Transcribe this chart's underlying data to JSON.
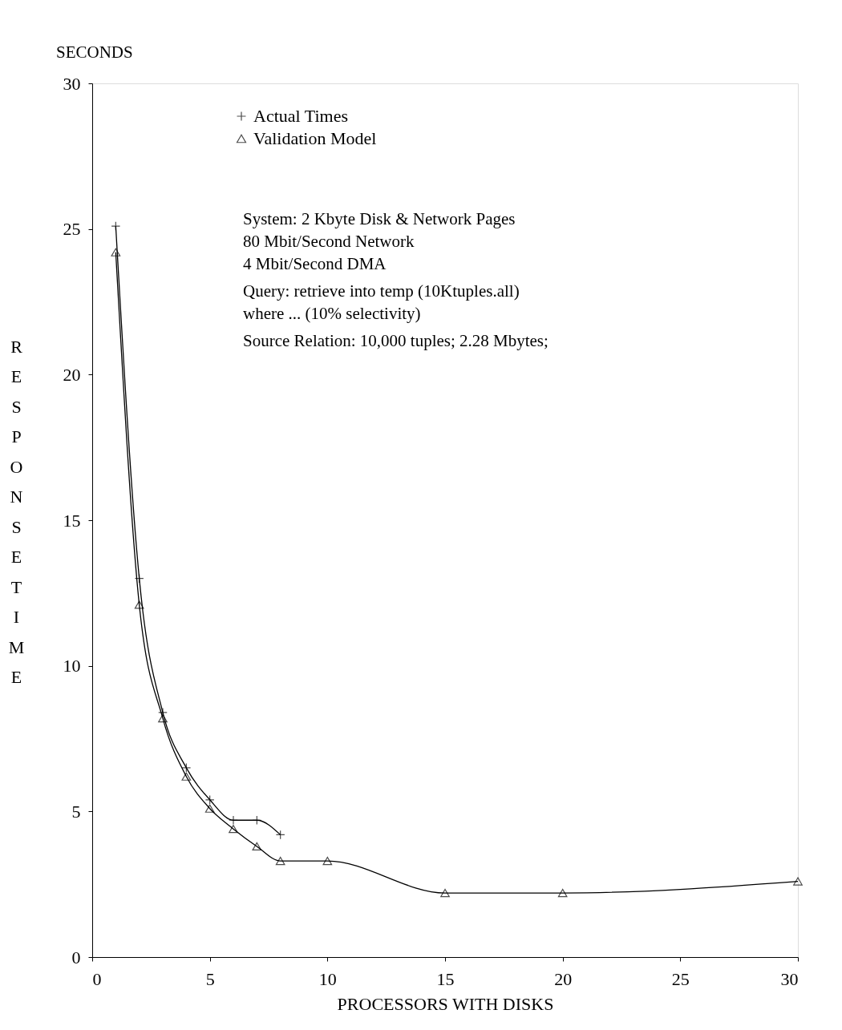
{
  "chart_data": {
    "type": "line",
    "xlabel": "PROCESSORS WITH DISKS",
    "ylabel": "RESPONSE TIME",
    "xlim": [
      0,
      30
    ],
    "xticks": [
      0,
      5,
      10,
      15,
      20,
      25,
      30
    ],
    "ylim": [
      0,
      30
    ],
    "yticks": [
      0,
      5,
      10,
      15,
      20,
      25,
      30
    ],
    "grid": false,
    "legend": "top left",
    "line_style": "solid",
    "series": [
      {
        "name": "Actual Times",
        "color": "#000000",
        "marker": "cross",
        "x": [
          1,
          2,
          3,
          4,
          5,
          6,
          7,
          8
        ],
        "values": [
          25.1,
          13.0,
          8.4,
          6.5,
          5.4,
          4.7,
          4.7,
          4.2
        ]
      },
      {
        "name": "Validation Model",
        "color": "#000000",
        "marker": "triangle",
        "x": [
          1,
          2,
          3,
          4,
          5,
          6,
          7,
          8,
          10,
          15,
          20,
          30
        ],
        "values": [
          24.2,
          12.1,
          8.2,
          6.2,
          5.1,
          4.4,
          3.8,
          3.3,
          3.3,
          2.2,
          2.2,
          2.6
        ]
      }
    ],
    "annotations": [
      "SECONDS",
      "System:     2 Kbyte Disk & Network Pages",
      "                  80 Mbit/Second Network",
      "                  4 Mbit/Second DMA",
      "Query:      retrieve into temp (10Ktuples.all)",
      "                 where ... (10% selectivity)",
      "Source Relation:  10,000 tuples; 2.28 Mbytes;"
    ]
  }
}
